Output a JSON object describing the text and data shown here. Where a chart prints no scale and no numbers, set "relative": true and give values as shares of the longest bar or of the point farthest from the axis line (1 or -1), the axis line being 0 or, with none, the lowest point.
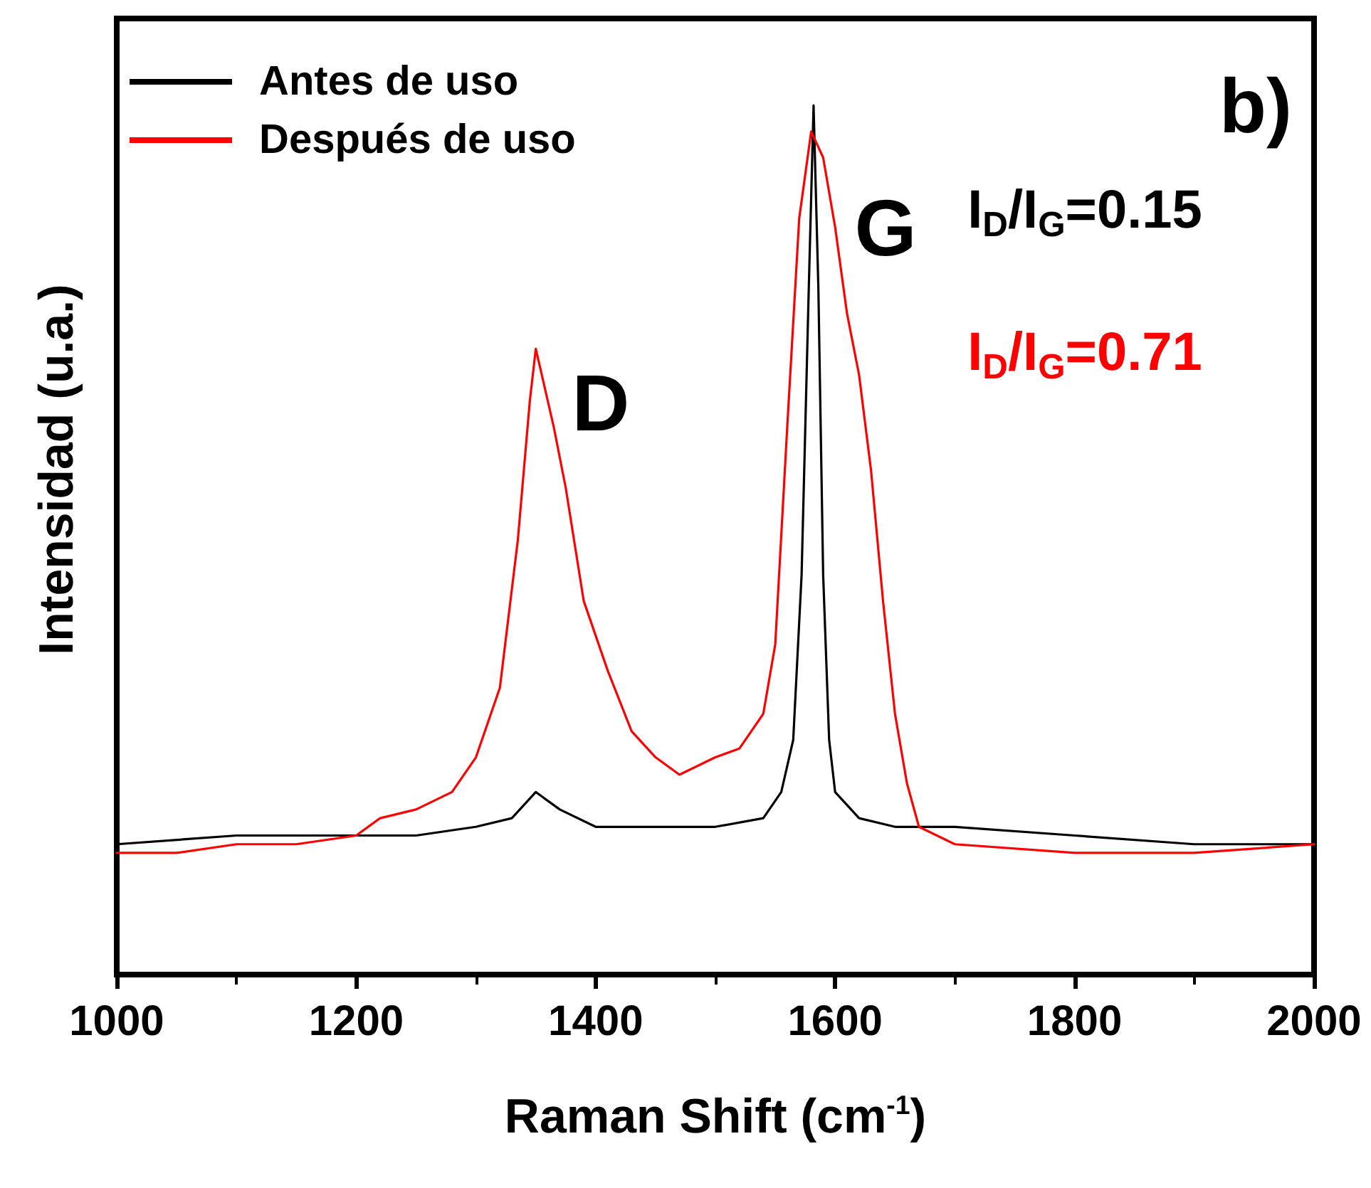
{
  "chart_data": {
    "type": "line",
    "relative": true,
    "xlabel": "Raman Shift (cm$^{-1}$)",
    "ylabel": "Intensidad (u.a.)",
    "xlim": [
      1000,
      2000
    ],
    "xticks": [
      1000,
      1200,
      1400,
      1600,
      1800,
      2000
    ],
    "legend": "top left",
    "marker": "none",
    "line_style": "solid",
    "grid": false,
    "series": [
      {
        "name": "Antes de uso",
        "color": "#000000",
        "x": [
          1000,
          1100,
          1200,
          1250,
          1300,
          1330,
          1350,
          1370,
          1400,
          1450,
          1500,
          1540,
          1555,
          1565,
          1572,
          1578,
          1582,
          1586,
          1590,
          1595,
          1600,
          1620,
          1650,
          1700,
          1800,
          1900,
          2000
        ],
        "values": [
          0.15,
          0.16,
          0.16,
          0.16,
          0.17,
          0.18,
          0.21,
          0.19,
          0.17,
          0.17,
          0.17,
          0.18,
          0.21,
          0.27,
          0.46,
          0.79,
          1,
          0.79,
          0.46,
          0.27,
          0.21,
          0.18,
          0.17,
          0.17,
          0.16,
          0.15,
          0.15
        ]
      },
      {
        "name": "Después de uso",
        "color": "#ff0000",
        "x": [
          1000,
          1050,
          1100,
          1150,
          1200,
          1220,
          1250,
          1280,
          1300,
          1320,
          1335,
          1345,
          1350,
          1355,
          1365,
          1375,
          1390,
          1410,
          1430,
          1450,
          1470,
          1500,
          1520,
          1540,
          1550,
          1560,
          1570,
          1580,
          1590,
          1600,
          1610,
          1620,
          1630,
          1640,
          1650,
          1660,
          1670,
          1700,
          1800,
          1900,
          2000
        ],
        "values": [
          0.14,
          0.14,
          0.15,
          0.15,
          0.16,
          0.18,
          0.19,
          0.21,
          0.25,
          0.33,
          0.5,
          0.66,
          0.72,
          0.69,
          0.63,
          0.56,
          0.43,
          0.35,
          0.28,
          0.25,
          0.23,
          0.25,
          0.26,
          0.3,
          0.38,
          0.63,
          0.87,
          0.97,
          0.94,
          0.86,
          0.76,
          0.69,
          0.58,
          0.43,
          0.3,
          0.22,
          0.17,
          0.15,
          0.14,
          0.14,
          0.15
        ]
      }
    ],
    "annotations": [
      "D",
      "G",
      "I$_{D}$/I$_{G}$=0.15",
      "I$_{D}$/I$_{G}$=0.71",
      "b)"
    ]
  }
}
